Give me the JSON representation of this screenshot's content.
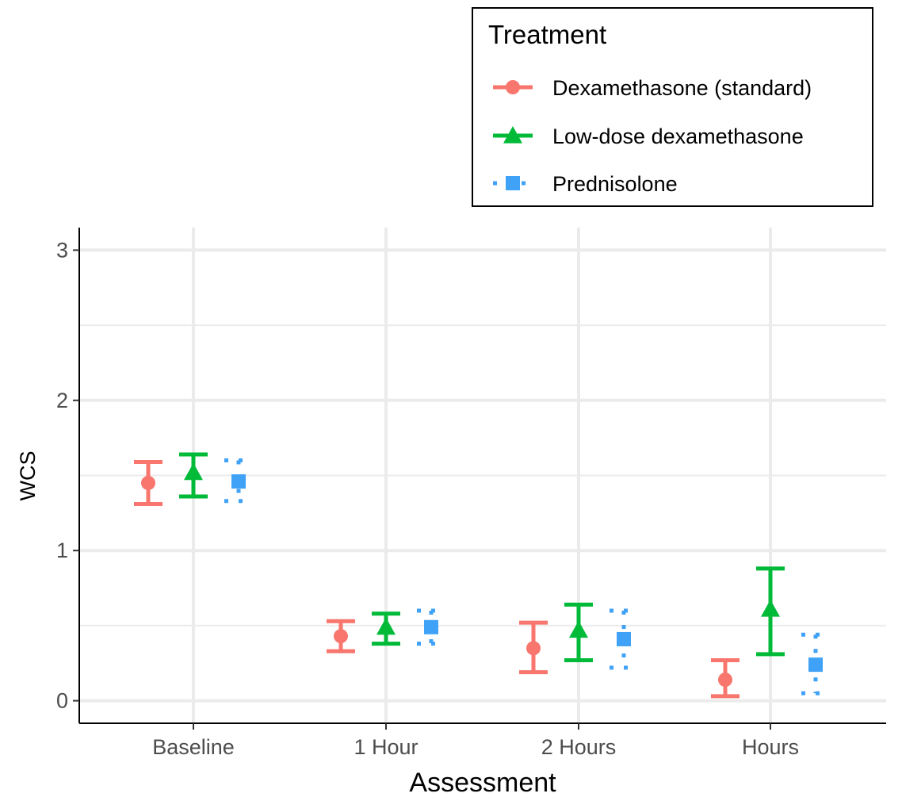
{
  "chart_data": {
    "type": "scatter",
    "xlabel": "Assessment",
    "ylabel": "WCS",
    "categories": [
      "Baseline",
      "1 Hour",
      "2 Hours",
      "Hours"
    ],
    "yticks": [
      "0",
      "1",
      "2",
      "3"
    ],
    "ylim": [
      -0.15,
      3.15
    ],
    "grid": true,
    "legend": {
      "title": "Treatment",
      "position": "top-right"
    },
    "series": [
      {
        "name": "Dexamethasone (standard)",
        "color": "#F8766D",
        "marker": "circle",
        "linetype": "solid",
        "values": [
          1.45,
          0.43,
          0.35,
          0.14
        ],
        "lower": [
          1.31,
          0.33,
          0.19,
          0.03
        ],
        "upper": [
          1.59,
          0.53,
          0.52,
          0.27
        ]
      },
      {
        "name": "Low-dose dexamethasone",
        "color": "#00BA38",
        "marker": "triangle",
        "linetype": "solid",
        "values": [
          1.52,
          0.49,
          0.47,
          0.61
        ],
        "lower": [
          1.36,
          0.38,
          0.27,
          0.31
        ],
        "upper": [
          1.64,
          0.58,
          0.64,
          0.88
        ]
      },
      {
        "name": "Prednisolone",
        "color": "#3FA2F7",
        "marker": "square",
        "linetype": "dotted",
        "values": [
          1.46,
          0.49,
          0.41,
          0.24
        ],
        "lower": [
          1.33,
          0.38,
          0.22,
          0.05
        ],
        "upper": [
          1.6,
          0.6,
          0.6,
          0.44
        ]
      }
    ]
  }
}
